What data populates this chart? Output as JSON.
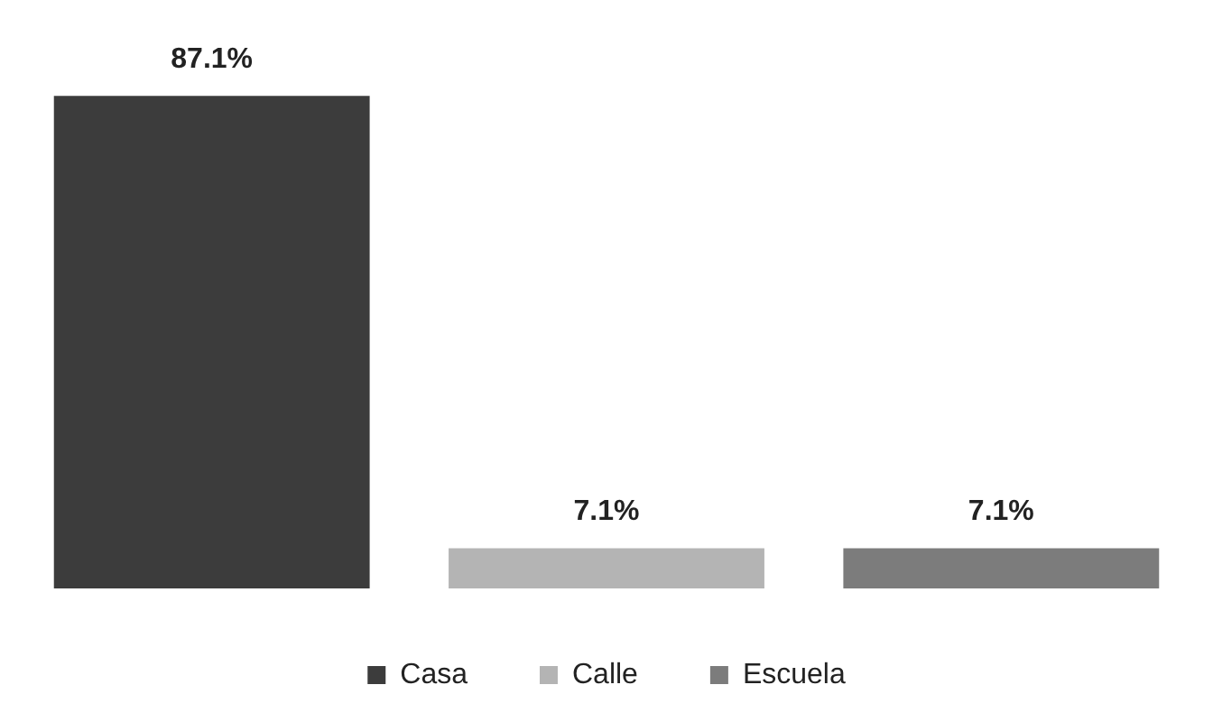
{
  "chart_data": {
    "type": "bar",
    "categories": [
      null,
      null,
      null
    ],
    "stacked": true,
    "legend": "bottom",
    "series": [
      {
        "name": "Casa",
        "color": "#3c3c3c",
        "values": [
          87.1,
          null,
          null
        ],
        "value_labels": [
          "87.1%",
          null,
          null
        ]
      },
      {
        "name": "Calle",
        "color": "#b4b4b4",
        "values": [
          null,
          7.1,
          null
        ],
        "value_labels": [
          null,
          "7.1%",
          null
        ]
      },
      {
        "name": "Escuela",
        "color": "#7c7c7c",
        "values": [
          null,
          null,
          7.1
        ],
        "value_labels": [
          null,
          null,
          "7.1%"
        ]
      }
    ]
  }
}
